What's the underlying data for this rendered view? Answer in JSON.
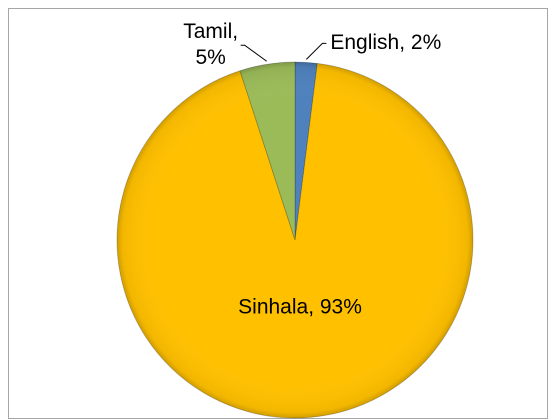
{
  "chart_data": {
    "type": "pie",
    "categories": [
      "English",
      "Sinhala",
      "Tamil"
    ],
    "values": [
      2,
      93,
      5
    ],
    "value_labels": [
      "English, 2%",
      "Sinhala, 93%",
      "Tamil, 5%"
    ],
    "colors": [
      "#4f81bd",
      "#ffc000",
      "#9bbb59"
    ]
  }
}
